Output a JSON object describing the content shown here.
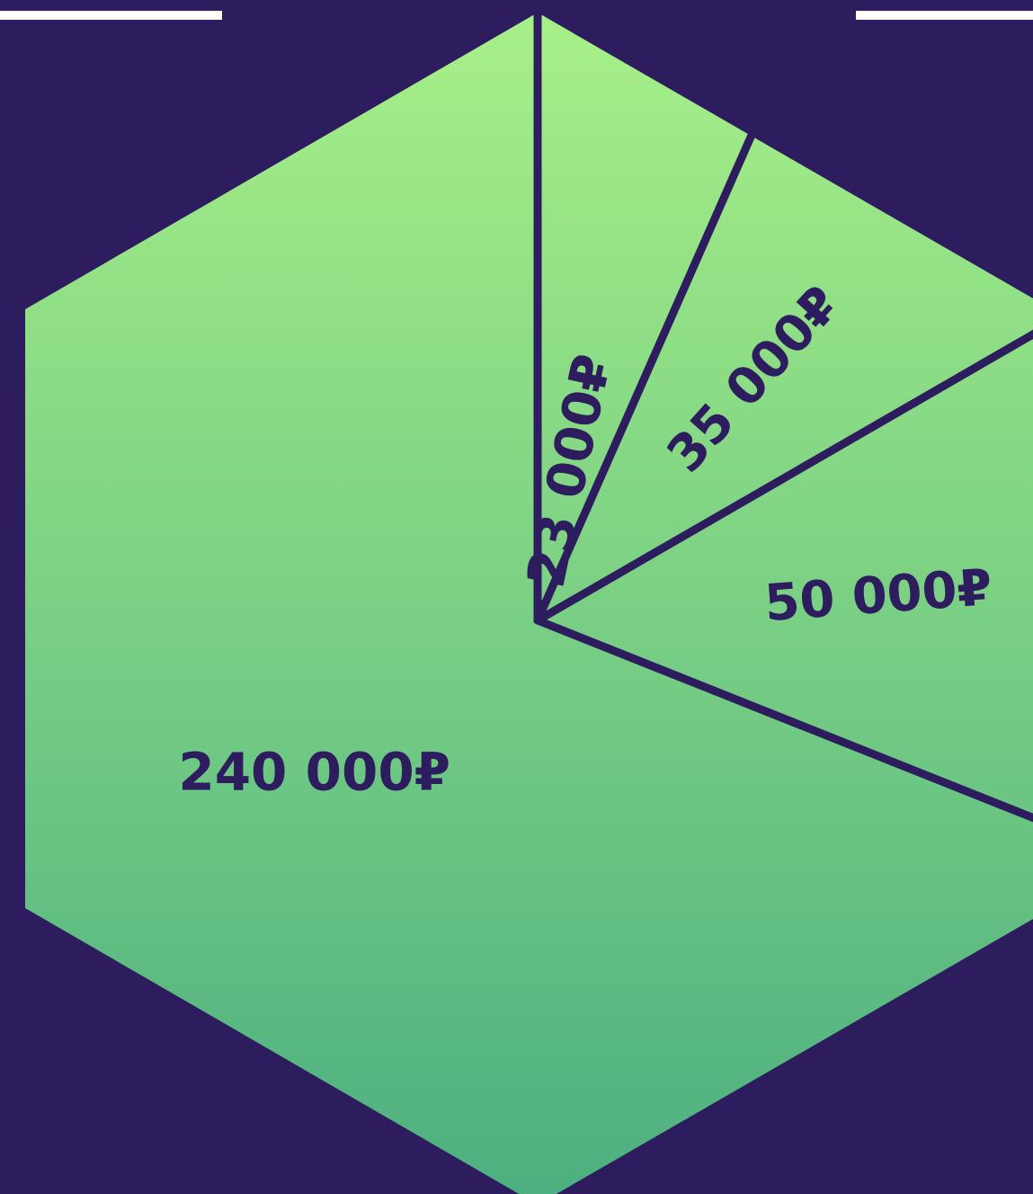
{
  "chart_data": {
    "type": "pie",
    "shape": "hexagon",
    "title": "",
    "legend": "none",
    "slices": [
      {
        "value": 23000,
        "label": "23 000₽"
      },
      {
        "value": 35000,
        "label": "35 000₽"
      },
      {
        "value": 50000,
        "label": "50 000₽"
      },
      {
        "value": 240000,
        "label": "240 000₽"
      }
    ],
    "colors": {
      "background": "#2d1c5e",
      "gradient_top": "#a8f088",
      "gradient_bottom": "#4caf80",
      "divider": "#2d1c5e",
      "label": "#2d1c5e",
      "accent_line": "#ffffff"
    }
  }
}
